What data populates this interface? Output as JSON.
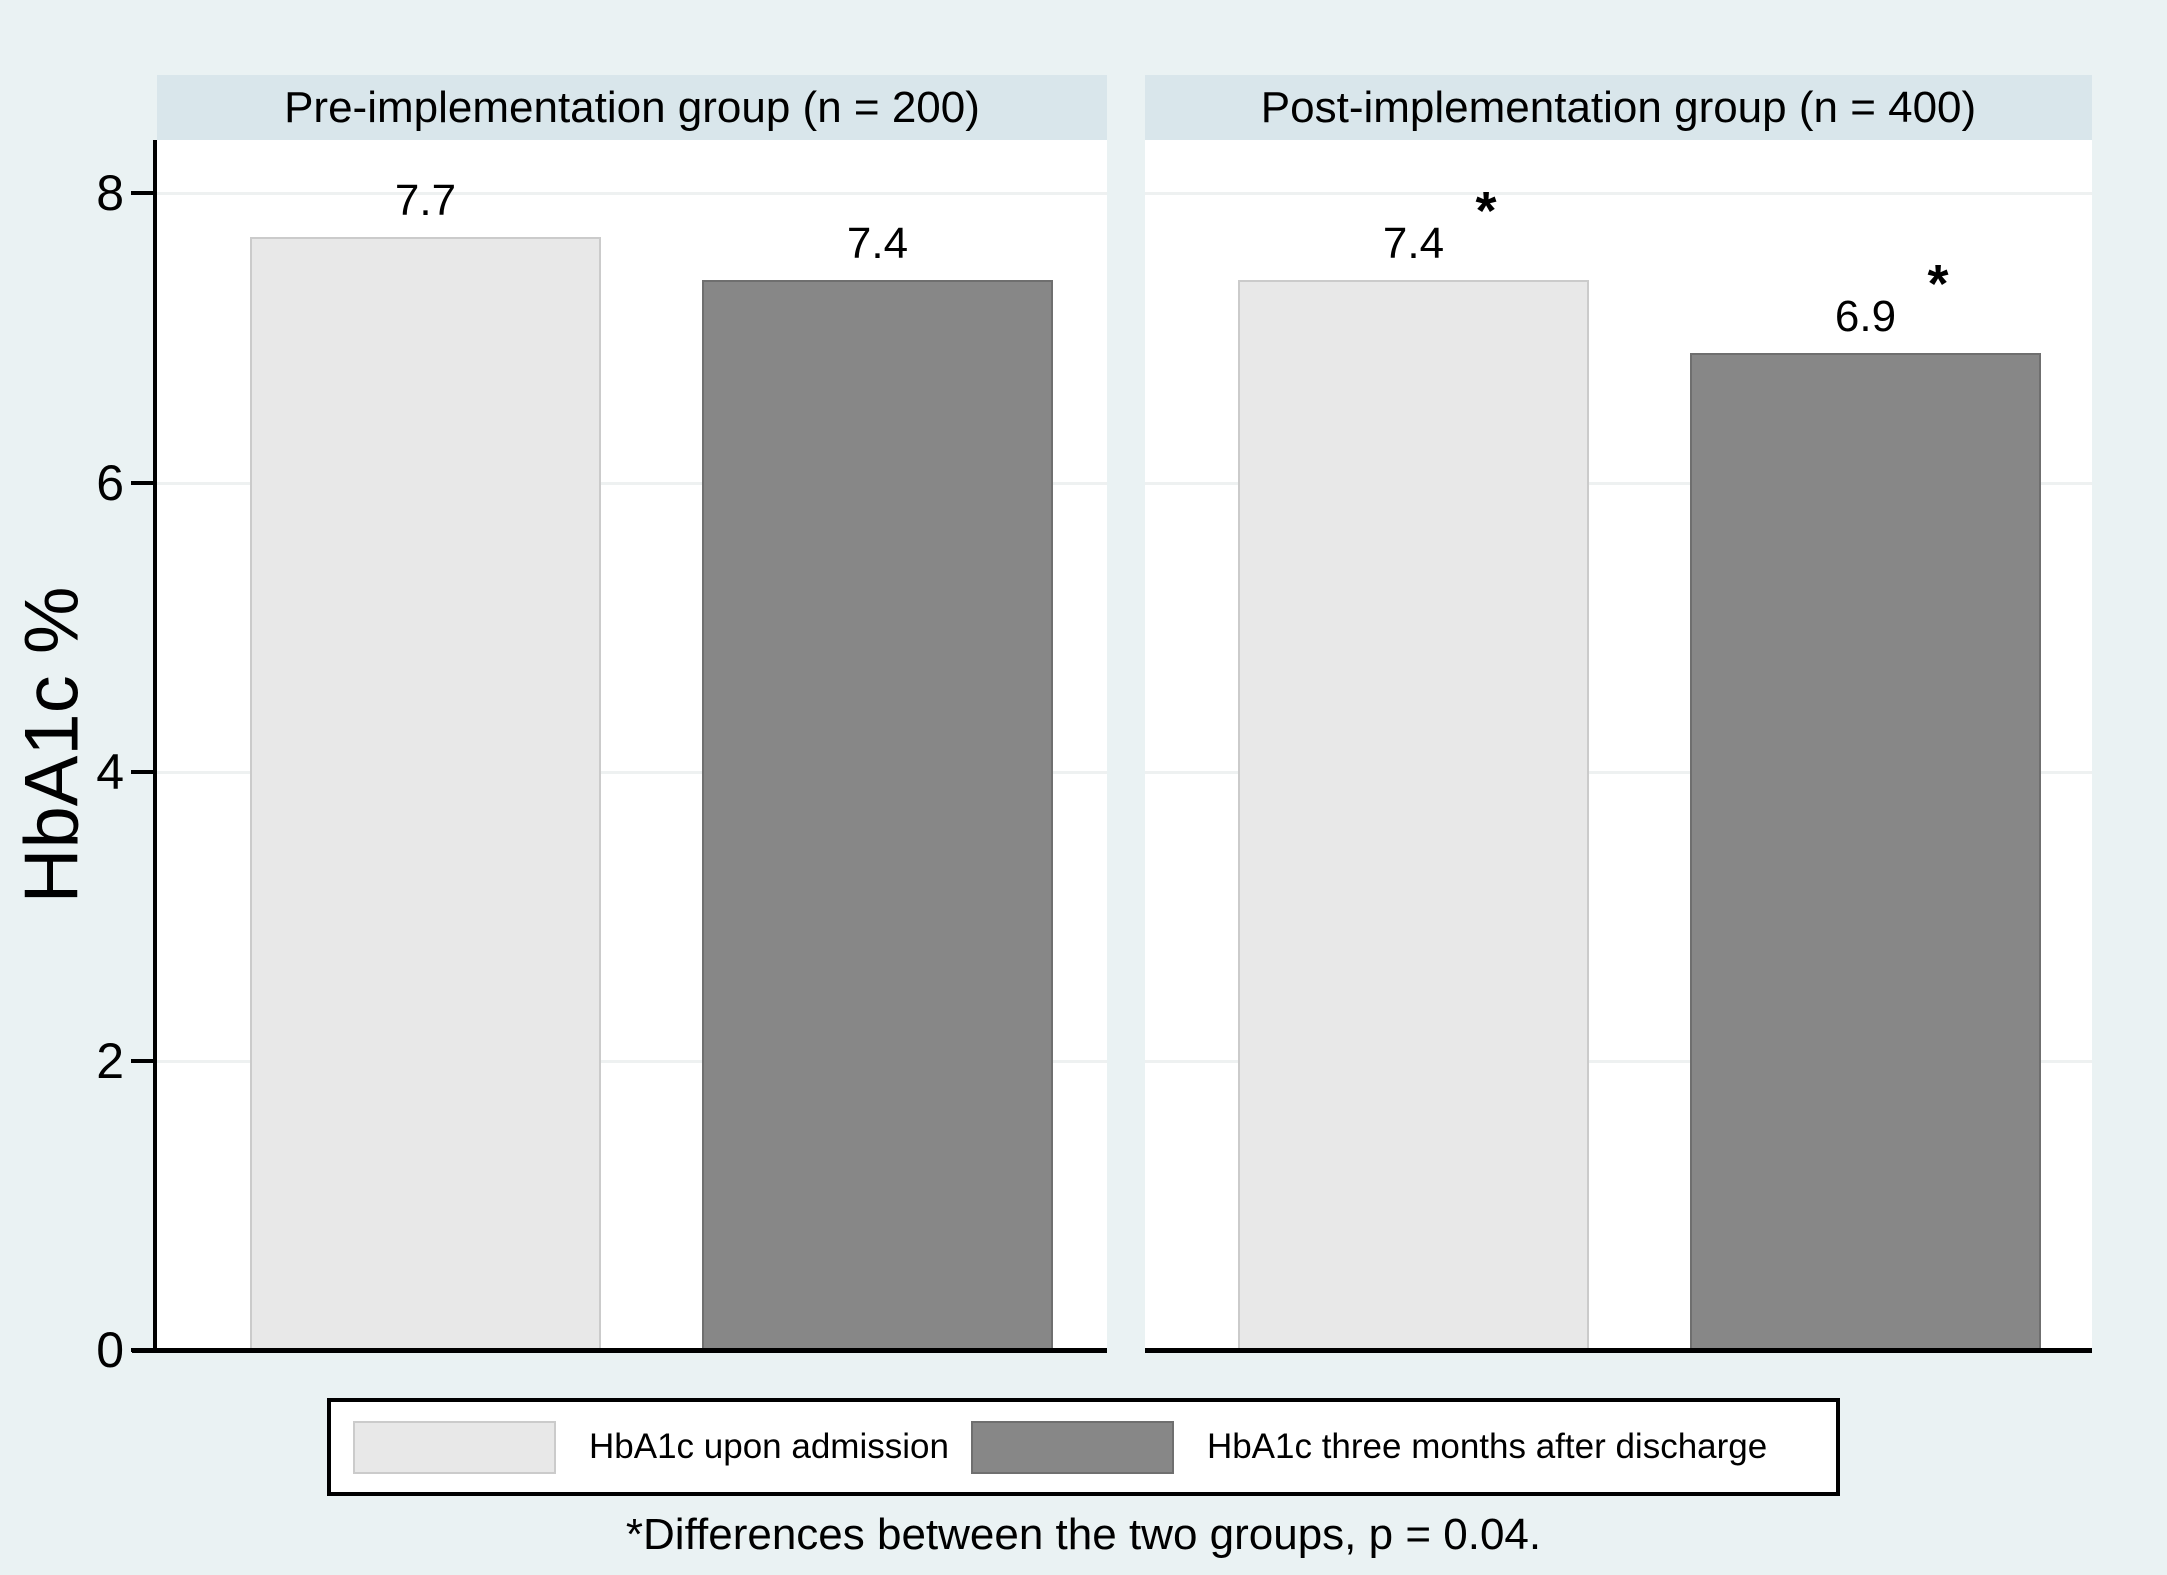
{
  "figure": {
    "ylabel": "HbA1c %",
    "footnote": "*Differences between the two groups, p = 0.04.",
    "star_marker": "*"
  },
  "legend": {
    "items": [
      {
        "label": "HbA1c upon admission",
        "style": "light"
      },
      {
        "label": "HbA1c three months after discharge",
        "style": "dark"
      }
    ]
  },
  "colors": {
    "page_bg": "#eaf2f3",
    "band_bg": "#d9e6eb",
    "plot_bg": "#ffffff",
    "grid": "#eef1f1",
    "axis": "#000000",
    "text": "#000000",
    "bar_light_fill": "#e8e8e8",
    "bar_light_border": "#cbcbcb",
    "bar_dark_fill": "#878787",
    "bar_dark_border": "#6f6f6f",
    "legend_bg": "#ffffff",
    "legend_border": "#000000"
  },
  "chart_data": {
    "type": "bar",
    "ylabel": "HbA1c %",
    "ylim": [
      0,
      8.37
    ],
    "yticks": [
      0,
      2,
      4,
      6,
      8
    ],
    "grid": "horizontal gridlines at 2, 4, 6, 8 (very light), on",
    "legend_position": "bottom-center, boxed",
    "series": [
      "HbA1c upon admission",
      "HbA1c three months after discharge"
    ],
    "panels": [
      {
        "title": "Pre-implementation group (n = 200)",
        "n": 200,
        "bars": [
          {
            "series": "HbA1c upon admission",
            "value": 7.7,
            "label": "7.7",
            "starred": false
          },
          {
            "series": "HbA1c three months after discharge",
            "value": 7.4,
            "label": "7.4",
            "starred": false
          }
        ]
      },
      {
        "title": "Post-implementation group (n = 400)",
        "n": 400,
        "bars": [
          {
            "series": "HbA1c upon admission",
            "value": 7.4,
            "label": "7.4",
            "starred": true
          },
          {
            "series": "HbA1c three months after discharge",
            "value": 6.9,
            "label": "6.9",
            "starred": true
          }
        ]
      }
    ],
    "annotation": "*Differences between the two groups, p = 0.04."
  }
}
